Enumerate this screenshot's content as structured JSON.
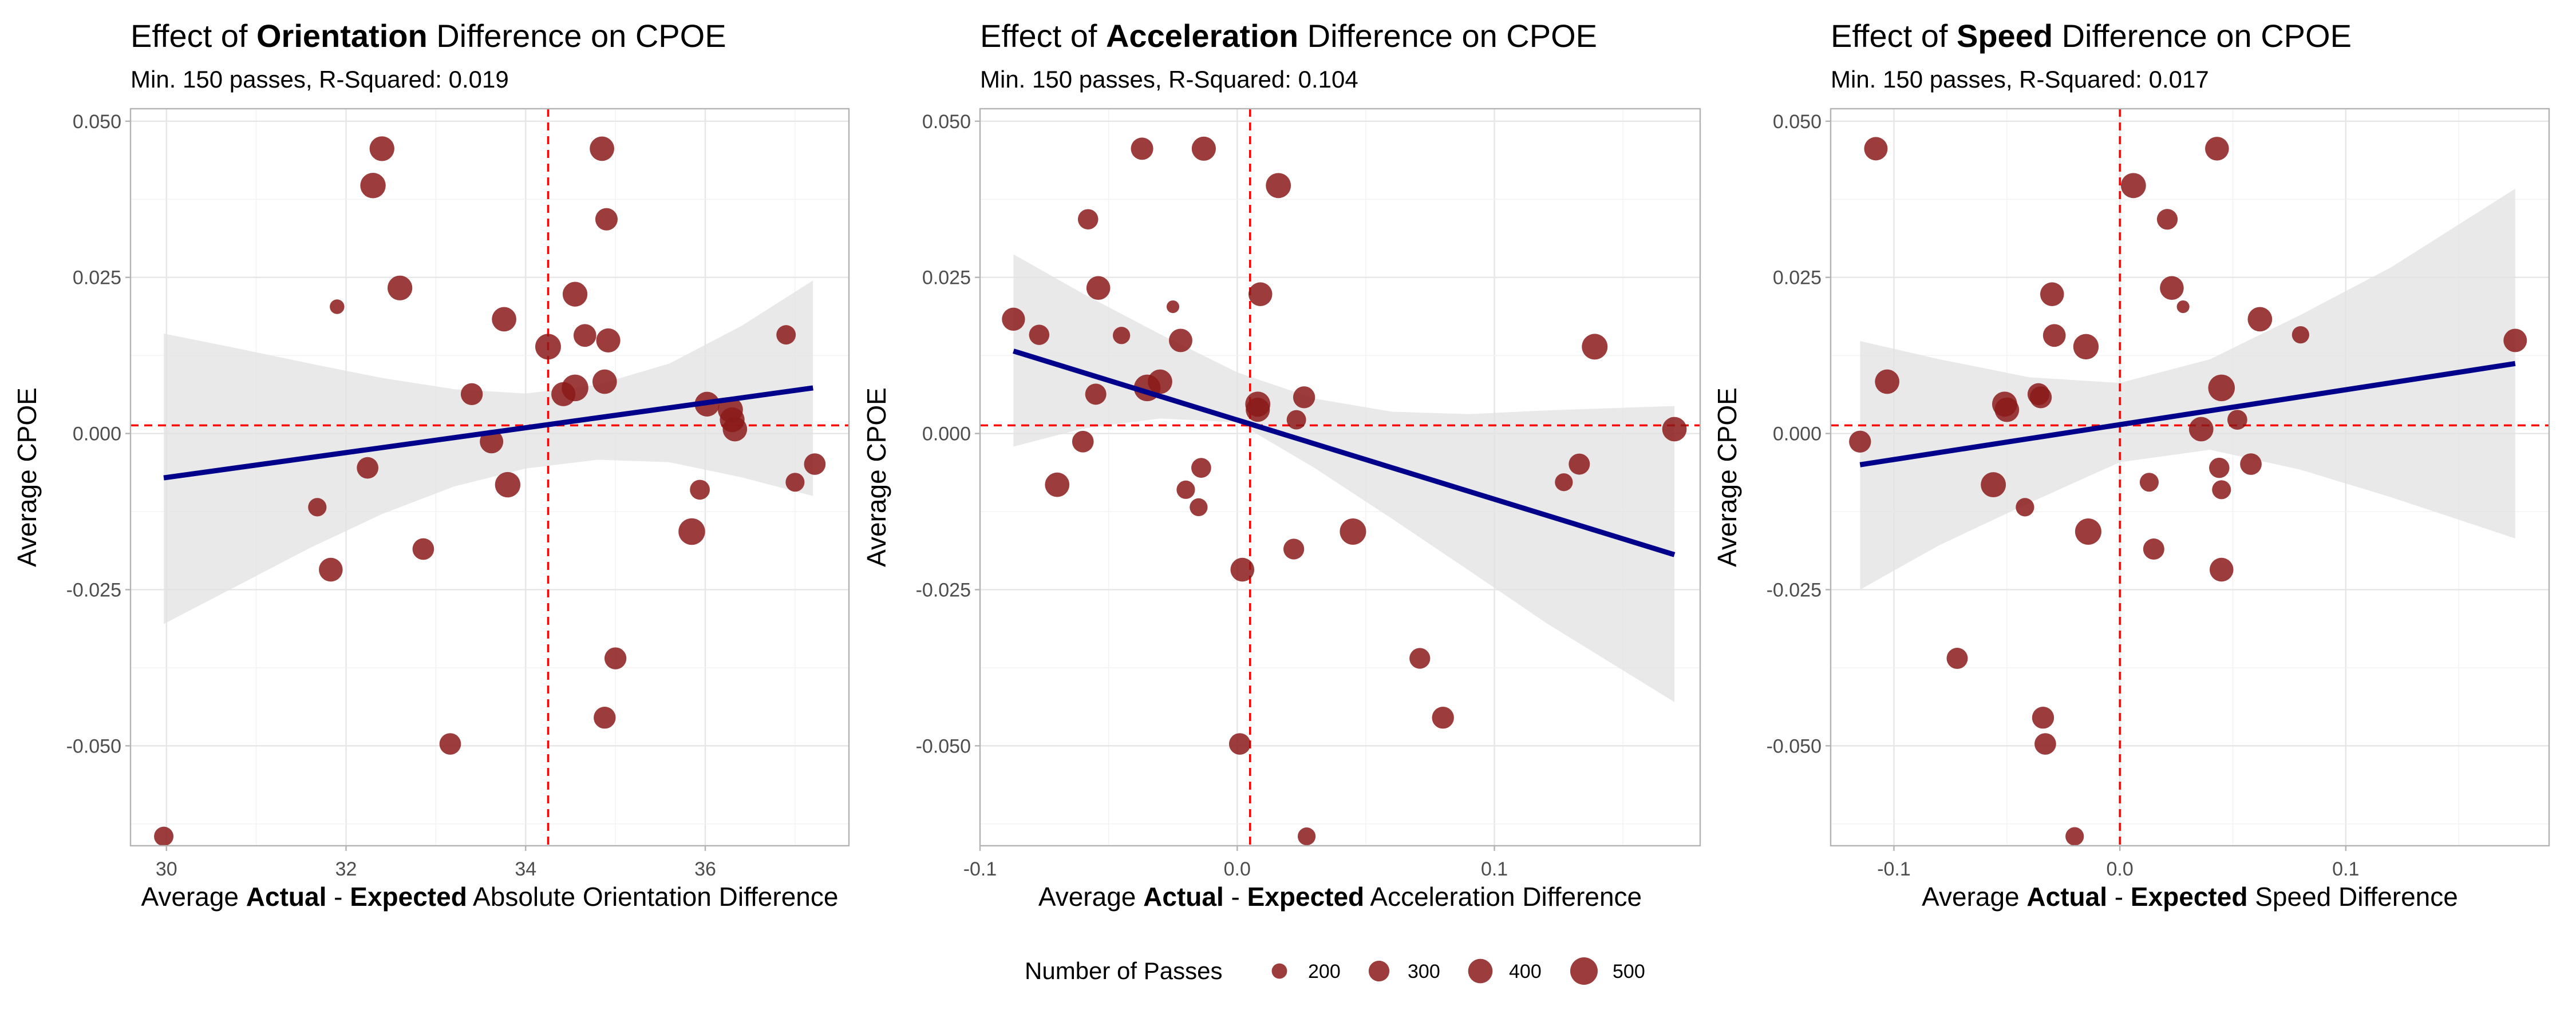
{
  "colors": {
    "point": "#8b1a1a",
    "fit_line": "#00008b",
    "ci_band": "#e2e2e2",
    "ref_line": "#ff0000"
  },
  "legend": {
    "title": "Number of Passes",
    "entries": [
      "200",
      "300",
      "400",
      "500"
    ],
    "sizes": [
      200,
      300,
      400,
      500
    ]
  },
  "chart_data": [
    {
      "type": "scatter",
      "title": {
        "pre": "Effect of ",
        "bold": "Orientation",
        "post": " Difference on CPOE"
      },
      "subtitle": "Min. 150 passes, R-Squared: 0.019",
      "xlabel": {
        "pre": "Average ",
        "b1": "Actual",
        "mid": " - ",
        "b2": "Expected",
        "post": " Absolute Orientation Difference"
      },
      "ylabel": "Average CPOE",
      "xlim": [
        29.6,
        37.6
      ],
      "ylim": [
        -0.066,
        0.052
      ],
      "xticks": [
        30,
        32,
        34,
        36
      ],
      "xtick_labels": [
        "30",
        "32",
        "34",
        "36"
      ],
      "yticks": [
        -0.05,
        -0.025,
        0,
        0.025,
        0.05
      ],
      "ytick_labels": [
        "-0.050",
        "-0.025",
        "0.000",
        "0.025",
        "0.050"
      ],
      "grid": true,
      "vline_x": 34.25,
      "hline_y": 0.0013,
      "fit": {
        "x": [
          29.97,
          37.2
        ],
        "y": [
          -0.0071,
          0.0073
        ]
      },
      "ci": {
        "x": [
          29.97,
          30.8,
          31.6,
          32.4,
          33.2,
          34.0,
          34.8,
          35.6,
          36.4,
          37.2
        ],
        "upper": [
          0.016,
          0.0136,
          0.0112,
          0.0089,
          0.0071,
          0.0064,
          0.0078,
          0.0112,
          0.0172,
          0.0245
        ],
        "lower": [
          -0.0305,
          -0.0243,
          -0.0183,
          -0.0129,
          -0.0085,
          -0.0056,
          -0.0042,
          -0.0046,
          -0.007,
          -0.01
        ]
      },
      "points": [
        {
          "x": 29.97,
          "y": -0.0645,
          "n": 270
        },
        {
          "x": 31.68,
          "y": -0.0118,
          "n": 250
        },
        {
          "x": 31.83,
          "y": -0.0218,
          "n": 380
        },
        {
          "x": 31.9,
          "y": 0.0203,
          "n": 190
        },
        {
          "x": 32.24,
          "y": -0.0055,
          "n": 320
        },
        {
          "x": 32.3,
          "y": 0.0397,
          "n": 430
        },
        {
          "x": 32.4,
          "y": 0.0456,
          "n": 410
        },
        {
          "x": 32.6,
          "y": 0.0233,
          "n": 410
        },
        {
          "x": 32.86,
          "y": -0.0185,
          "n": 320
        },
        {
          "x": 33.16,
          "y": -0.0497,
          "n": 320
        },
        {
          "x": 33.4,
          "y": 0.0063,
          "n": 330
        },
        {
          "x": 33.62,
          "y": -0.0013,
          "n": 370
        },
        {
          "x": 33.76,
          "y": 0.0183,
          "n": 400
        },
        {
          "x": 33.8,
          "y": -0.0082,
          "n": 430
        },
        {
          "x": 34.25,
          "y": 0.0139,
          "n": 440
        },
        {
          "x": 34.42,
          "y": 0.0063,
          "n": 390
        },
        {
          "x": 34.55,
          "y": 0.0223,
          "n": 410
        },
        {
          "x": 34.55,
          "y": 0.0073,
          "n": 470
        },
        {
          "x": 34.66,
          "y": 0.0157,
          "n": 350
        },
        {
          "x": 34.85,
          "y": 0.0456,
          "n": 400
        },
        {
          "x": 34.88,
          "y": 0.0083,
          "n": 400
        },
        {
          "x": 34.88,
          "y": -0.0455,
          "n": 330
        },
        {
          "x": 34.9,
          "y": 0.0343,
          "n": 340
        },
        {
          "x": 34.92,
          "y": 0.0149,
          "n": 390
        },
        {
          "x": 35.0,
          "y": -0.036,
          "n": 330
        },
        {
          "x": 35.85,
          "y": -0.0157,
          "n": 470
        },
        {
          "x": 35.94,
          "y": -0.009,
          "n": 280
        },
        {
          "x": 36.02,
          "y": 0.0047,
          "n": 410
        },
        {
          "x": 36.28,
          "y": 0.0038,
          "n": 420
        },
        {
          "x": 36.3,
          "y": 0.0022,
          "n": 410
        },
        {
          "x": 36.33,
          "y": 0.0007,
          "n": 400
        },
        {
          "x": 36.9,
          "y": 0.0158,
          "n": 270
        },
        {
          "x": 37.0,
          "y": -0.0078,
          "n": 260
        },
        {
          "x": 37.22,
          "y": -0.0049,
          "n": 320
        }
      ]
    },
    {
      "type": "scatter",
      "title": {
        "pre": "Effect of ",
        "bold": "Acceleration",
        "post": " Difference on CPOE"
      },
      "subtitle": "Min. 150 passes, R-Squared: 0.104",
      "xlabel": {
        "pre": "Average ",
        "b1": "Actual",
        "mid": " - ",
        "b2": "Expected",
        "post": " Acceleration Difference"
      },
      "ylabel": "Average CPOE",
      "xlim": [
        -0.1,
        0.18
      ],
      "ylim": [
        -0.066,
        0.052
      ],
      "xticks": [
        -0.1,
        0,
        0.1
      ],
      "xtick_labels": [
        "-0.1",
        "0.0",
        "0.1"
      ],
      "yticks": [
        -0.05,
        -0.025,
        0,
        0.025,
        0.05
      ],
      "ytick_labels": [
        "-0.050",
        "-0.025",
        "0.000",
        "0.025",
        "0.050"
      ],
      "grid": true,
      "vline_x": 0.005,
      "hline_y": 0.0013,
      "fit": {
        "x": [
          -0.087,
          0.17
        ],
        "y": [
          0.0132,
          -0.0194
        ]
      },
      "ci": {
        "x": [
          -0.087,
          -0.06,
          -0.03,
          0.0,
          0.03,
          0.06,
          0.09,
          0.12,
          0.17
        ],
        "upper": [
          0.0287,
          0.0224,
          0.0159,
          0.0098,
          0.0056,
          0.0035,
          0.0031,
          0.0037,
          0.0044
        ],
        "lower": [
          -0.0021,
          0.0008,
          0.0024,
          0.0018,
          -0.0055,
          -0.0136,
          -0.0219,
          -0.0303,
          -0.043
        ]
      },
      "points": [
        {
          "x": -0.087,
          "y": 0.0183,
          "n": 360
        },
        {
          "x": -0.077,
          "y": 0.0158,
          "n": 290
        },
        {
          "x": -0.07,
          "y": -0.0082,
          "n": 400
        },
        {
          "x": -0.06,
          "y": -0.0013,
          "n": 320
        },
        {
          "x": -0.058,
          "y": 0.0343,
          "n": 290
        },
        {
          "x": -0.055,
          "y": 0.0063,
          "n": 310
        },
        {
          "x": -0.054,
          "y": 0.0233,
          "n": 380
        },
        {
          "x": -0.045,
          "y": 0.0157,
          "n": 230
        },
        {
          "x": -0.037,
          "y": 0.0456,
          "n": 340
        },
        {
          "x": -0.035,
          "y": 0.0073,
          "n": 470
        },
        {
          "x": -0.03,
          "y": 0.0083,
          "n": 400
        },
        {
          "x": -0.025,
          "y": 0.0203,
          "n": 170
        },
        {
          "x": -0.022,
          "y": 0.0149,
          "n": 370
        },
        {
          "x": -0.02,
          "y": -0.009,
          "n": 250
        },
        {
          "x": -0.015,
          "y": -0.0118,
          "n": 240
        },
        {
          "x": -0.014,
          "y": -0.0055,
          "n": 280
        },
        {
          "x": -0.013,
          "y": 0.0456,
          "n": 390
        },
        {
          "x": 0.001,
          "y": -0.0497,
          "n": 320
        },
        {
          "x": 0.002,
          "y": -0.0218,
          "n": 380
        },
        {
          "x": 0.008,
          "y": 0.0047,
          "n": 420
        },
        {
          "x": 0.008,
          "y": 0.0038,
          "n": 390
        },
        {
          "x": 0.009,
          "y": 0.0223,
          "n": 380
        },
        {
          "x": 0.016,
          "y": 0.0397,
          "n": 420
        },
        {
          "x": 0.022,
          "y": -0.0185,
          "n": 300
        },
        {
          "x": 0.023,
          "y": 0.0022,
          "n": 270
        },
        {
          "x": 0.026,
          "y": 0.0058,
          "n": 330
        },
        {
          "x": 0.027,
          "y": -0.0645,
          "n": 240
        },
        {
          "x": 0.045,
          "y": -0.0157,
          "n": 460
        },
        {
          "x": 0.071,
          "y": -0.036,
          "n": 300
        },
        {
          "x": 0.08,
          "y": -0.0455,
          "n": 330
        },
        {
          "x": 0.127,
          "y": -0.0078,
          "n": 240
        },
        {
          "x": 0.133,
          "y": -0.0049,
          "n": 310
        },
        {
          "x": 0.139,
          "y": 0.0139,
          "n": 440
        },
        {
          "x": 0.17,
          "y": 0.0007,
          "n": 400
        }
      ]
    },
    {
      "type": "scatter",
      "title": {
        "pre": "Effect of ",
        "bold": "Speed",
        "post": " Difference on CPOE"
      },
      "subtitle": "Min. 150 passes, R-Squared: 0.017",
      "xlabel": {
        "pre": "Average ",
        "b1": "Actual",
        "mid": " - ",
        "b2": "Expected",
        "post": " Speed Difference"
      },
      "ylabel": "Average CPOE",
      "xlim": [
        -0.128,
        0.19
      ],
      "ylim": [
        -0.066,
        0.052
      ],
      "xticks": [
        -0.1,
        0,
        0.1
      ],
      "xtick_labels": [
        "-0.1",
        "0.0",
        "0.1"
      ],
      "yticks": [
        -0.05,
        -0.025,
        0,
        0.025,
        0.05
      ],
      "ytick_labels": [
        "-0.050",
        "-0.025",
        "0.000",
        "0.025",
        "0.050"
      ],
      "grid": true,
      "vline_x": 0.0,
      "hline_y": 0.0013,
      "fit": {
        "x": [
          -0.115,
          0.175
        ],
        "y": [
          -0.005,
          0.0112
        ]
      },
      "ci": {
        "x": [
          -0.115,
          -0.08,
          -0.04,
          0.0,
          0.04,
          0.08,
          0.12,
          0.175
        ],
        "upper": [
          0.0148,
          0.0119,
          0.009,
          0.0081,
          0.0119,
          0.019,
          0.0266,
          0.0392
        ],
        "lower": [
          -0.025,
          -0.0179,
          -0.0111,
          -0.0046,
          -0.0026,
          -0.0058,
          -0.0102,
          -0.0168
        ]
      },
      "points": [
        {
          "x": -0.115,
          "y": -0.0013,
          "n": 330
        },
        {
          "x": -0.108,
          "y": 0.0456,
          "n": 370
        },
        {
          "x": -0.103,
          "y": 0.0083,
          "n": 400
        },
        {
          "x": -0.072,
          "y": -0.036,
          "n": 310
        },
        {
          "x": -0.056,
          "y": -0.0082,
          "n": 420
        },
        {
          "x": -0.051,
          "y": 0.0047,
          "n": 420
        },
        {
          "x": -0.05,
          "y": 0.0038,
          "n": 400
        },
        {
          "x": -0.042,
          "y": -0.0118,
          "n": 250
        },
        {
          "x": -0.036,
          "y": 0.0063,
          "n": 330
        },
        {
          "x": -0.035,
          "y": 0.0058,
          "n": 330
        },
        {
          "x": -0.034,
          "y": -0.0455,
          "n": 330
        },
        {
          "x": -0.033,
          "y": -0.0497,
          "n": 320
        },
        {
          "x": -0.03,
          "y": 0.0223,
          "n": 380
        },
        {
          "x": -0.029,
          "y": 0.0157,
          "n": 350
        },
        {
          "x": -0.02,
          "y": -0.0645,
          "n": 250
        },
        {
          "x": -0.015,
          "y": 0.0139,
          "n": 430
        },
        {
          "x": -0.014,
          "y": -0.0157,
          "n": 460
        },
        {
          "x": 0.006,
          "y": 0.0397,
          "n": 420
        },
        {
          "x": 0.013,
          "y": -0.0078,
          "n": 260
        },
        {
          "x": 0.015,
          "y": -0.0185,
          "n": 310
        },
        {
          "x": 0.021,
          "y": 0.0343,
          "n": 300
        },
        {
          "x": 0.023,
          "y": 0.0233,
          "n": 380
        },
        {
          "x": 0.028,
          "y": 0.0203,
          "n": 170
        },
        {
          "x": 0.036,
          "y": 0.0007,
          "n": 400
        },
        {
          "x": 0.043,
          "y": 0.0456,
          "n": 380
        },
        {
          "x": 0.044,
          "y": -0.0055,
          "n": 290
        },
        {
          "x": 0.045,
          "y": 0.0073,
          "n": 470
        },
        {
          "x": 0.045,
          "y": -0.009,
          "n": 260
        },
        {
          "x": 0.045,
          "y": -0.0218,
          "n": 380
        },
        {
          "x": 0.052,
          "y": 0.0022,
          "n": 280
        },
        {
          "x": 0.058,
          "y": -0.0049,
          "n": 320
        },
        {
          "x": 0.062,
          "y": 0.0183,
          "n": 400
        },
        {
          "x": 0.08,
          "y": 0.0158,
          "n": 230
        },
        {
          "x": 0.175,
          "y": 0.0149,
          "n": 370
        }
      ]
    }
  ]
}
